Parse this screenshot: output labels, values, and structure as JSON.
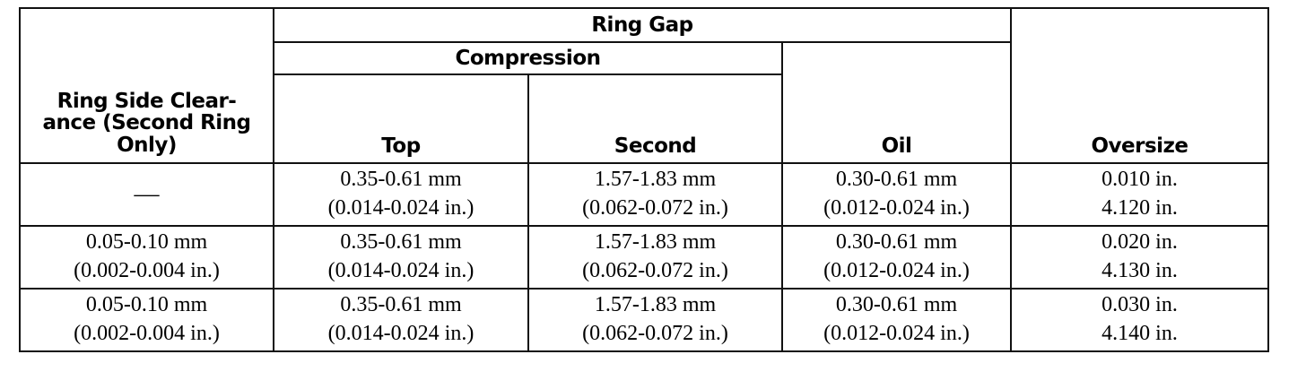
{
  "headers": {
    "ring_gap": "Ring Gap",
    "compression": "Compression",
    "side_clearance": [
      "Ring Side Clear-",
      "ance (Second Ring",
      "Only)"
    ],
    "top": "Top",
    "second": "Second",
    "oil": "Oil",
    "oversize": "Oversize"
  },
  "rows": [
    {
      "side_clearance": [
        "—"
      ],
      "top": [
        "0.35-0.61 mm",
        "(0.014-0.024 in.)"
      ],
      "second": [
        "1.57-1.83 mm",
        "(0.062-0.072 in.)"
      ],
      "oil": [
        "0.30-0.61 mm",
        "(0.012-0.024 in.)"
      ],
      "oversize": [
        "0.010 in.",
        "4.120 in."
      ]
    },
    {
      "side_clearance": [
        "0.05-0.10 mm",
        "(0.002-0.004 in.)"
      ],
      "top": [
        "0.35-0.61 mm",
        "(0.014-0.024 in.)"
      ],
      "second": [
        "1.57-1.83 mm",
        "(0.062-0.072 in.)"
      ],
      "oil": [
        "0.30-0.61 mm",
        "(0.012-0.024 in.)"
      ],
      "oversize": [
        "0.020 in.",
        "4.130 in."
      ]
    },
    {
      "side_clearance": [
        "0.05-0.10 mm",
        "(0.002-0.004 in.)"
      ],
      "top": [
        "0.35-0.61 mm",
        "(0.014-0.024 in.)"
      ],
      "second": [
        "1.57-1.83 mm",
        "(0.062-0.072 in.)"
      ],
      "oil": [
        "0.30-0.61 mm",
        "(0.012-0.024 in.)"
      ],
      "oversize": [
        "0.030 in.",
        "4.140 in."
      ]
    }
  ]
}
